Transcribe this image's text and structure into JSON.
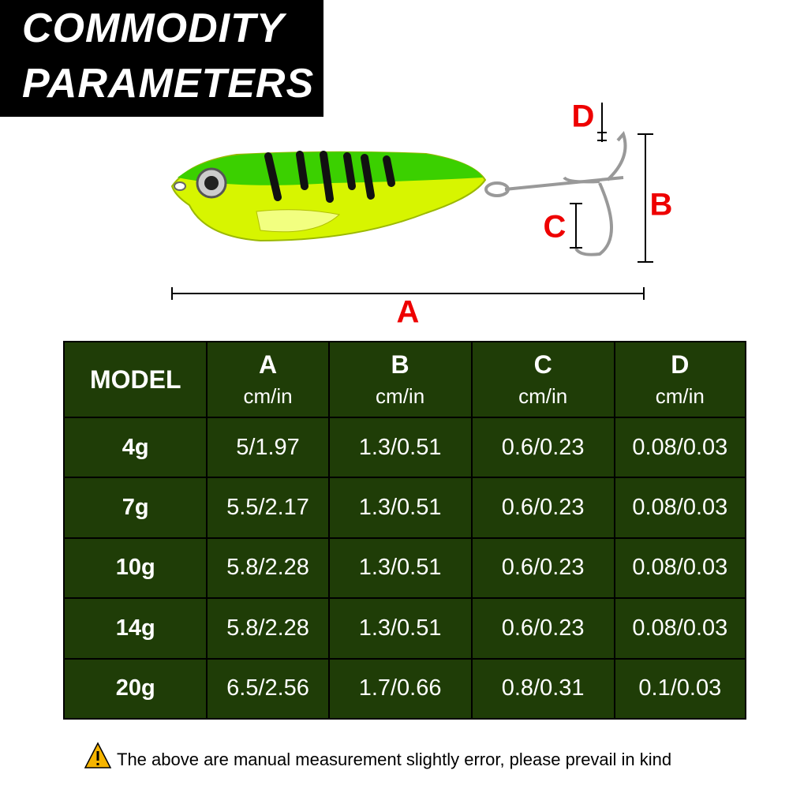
{
  "header": {
    "title_lines": [
      "COMMODITY",
      "PARAMETERS"
    ]
  },
  "dimensions": {
    "a": "A",
    "b": "B",
    "c": "C",
    "d": "D"
  },
  "table": {
    "columns": [
      {
        "label": "MODEL"
      },
      {
        "label": "A",
        "unit": "cm/in"
      },
      {
        "label": "B",
        "unit": "cm/in"
      },
      {
        "label": "C",
        "unit": "cm/in"
      },
      {
        "label": "D",
        "unit": "cm/in"
      }
    ],
    "rows": [
      [
        "4g",
        "5/1.97",
        "1.3/0.51",
        "0.6/0.23",
        "0.08/0.03"
      ],
      [
        "7g",
        "5.5/2.17",
        "1.3/0.51",
        "0.6/0.23",
        "0.08/0.03"
      ],
      [
        "10g",
        "5.8/2.28",
        "1.3/0.51",
        "0.6/0.23",
        "0.08/0.03"
      ],
      [
        "14g",
        "5.8/2.28",
        "1.3/0.51",
        "0.6/0.23",
        "0.08/0.03"
      ],
      [
        "20g",
        "6.5/2.56",
        "1.7/0.66",
        "0.8/0.31",
        "0.1/0.03"
      ]
    ]
  },
  "footer": {
    "note": "The above are manual measurement slightly error, please prevail in kind"
  }
}
